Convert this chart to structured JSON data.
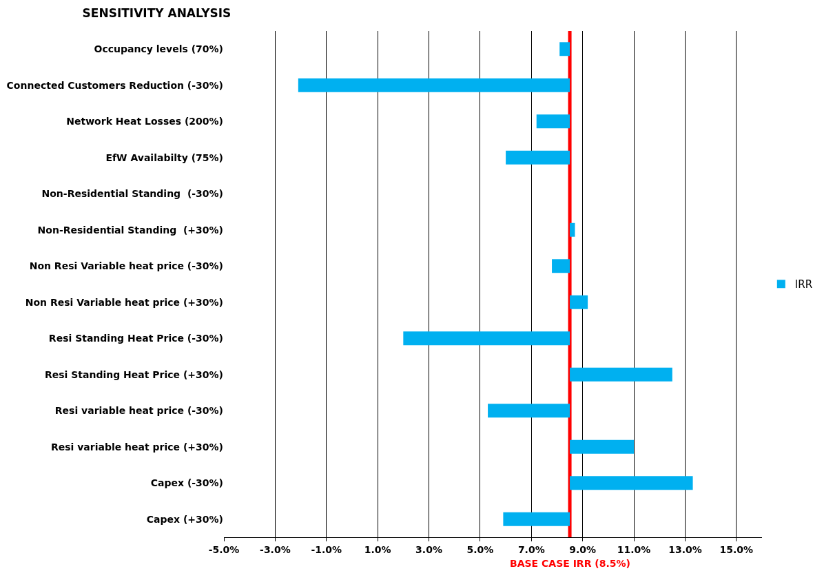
{
  "chart_data": {
    "type": "bar",
    "orientation": "horizontal",
    "title": "SENSITIVITY ANALYSIS",
    "categories": [
      "Occupancy levels (70%)",
      "Connected Customers Reduction (-30%)",
      "Network Heat Losses (200%)",
      "EfW Availabilty (75%)",
      "Non-Residential Standing  (-30%)",
      "Non-Residential Standing  (+30%)",
      "Non Resi Variable heat price (-30%)",
      "Non Resi Variable heat price (+30%)",
      "Resi Standing Heat Price (-30%)",
      "Resi Standing Heat Price (+30%)",
      "Resi variable heat price (-30%)",
      "Resi variable heat price (+30%)",
      "Capex (-30%)",
      "Capex (+30%)"
    ],
    "series": [
      {
        "name": "IRR",
        "color": "#00b0f0",
        "values": [
          -0.4,
          -10.6,
          -1.3,
          -2.5,
          null,
          0.2,
          -0.7,
          0.7,
          -6.5,
          4.0,
          -3.2,
          2.5,
          4.8,
          -2.6
        ],
        "base": [
          8.5,
          8.5,
          8.5,
          8.5,
          null,
          8.5,
          8.5,
          8.5,
          8.5,
          8.5,
          8.5,
          8.5,
          8.5,
          8.5
        ]
      }
    ],
    "xlim": [
      -5,
      16
    ],
    "xticks": [
      {
        "value": -5,
        "label": "-5.0%"
      },
      {
        "value": -3,
        "label": "-3.0%"
      },
      {
        "value": -1,
        "label": "-1.0%"
      },
      {
        "value": 1,
        "label": "1.0%"
      },
      {
        "value": 3,
        "label": "3.0%"
      },
      {
        "value": 5,
        "label": "5.0%"
      },
      {
        "value": 7,
        "label": "7.0%"
      },
      {
        "value": 9,
        "label": "9.0%"
      },
      {
        "value": 11,
        "label": "11.0%"
      },
      {
        "value": 13,
        "label": "13.0%"
      },
      {
        "value": 15,
        "label": "15.0%"
      }
    ],
    "ref_lines": [
      {
        "axis": "x",
        "value": 8.5,
        "label": "BASE CASE IRR (8.5%)",
        "color": "#ff0000"
      }
    ],
    "grid": "x",
    "legend": "right"
  }
}
